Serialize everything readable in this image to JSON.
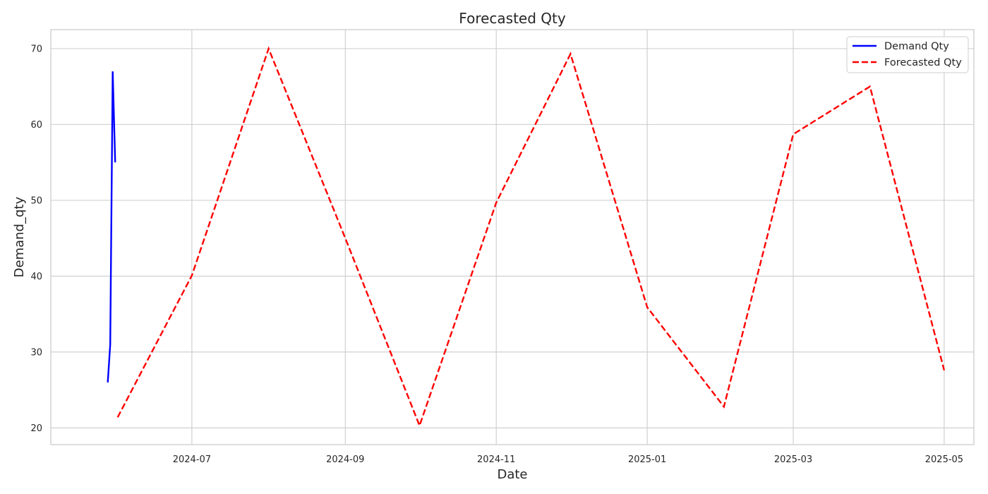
{
  "chart_data": {
    "type": "line",
    "title": "Forecasted Qty",
    "xlabel": "Date",
    "ylabel": "Demand_qty",
    "x_axis": {
      "kind": "date",
      "range": [
        "2024-05-05",
        "2025-05-13"
      ],
      "ticks": [
        "2024-07-01",
        "2024-09-01",
        "2024-11-01",
        "2025-01-01",
        "2025-03-01",
        "2025-05-01"
      ],
      "tick_labels": [
        "2024-07",
        "2024-09",
        "2024-11",
        "2025-01",
        "2025-03",
        "2025-05"
      ]
    },
    "y_axis": {
      "range": [
        17.8,
        72.5
      ],
      "ticks": [
        20,
        30,
        40,
        50,
        60,
        70
      ],
      "tick_labels": [
        "20",
        "30",
        "40",
        "50",
        "60",
        "70"
      ]
    },
    "grid": true,
    "legend_position": "top-right",
    "series": [
      {
        "name": "Demand Qty",
        "color": "#0000ff",
        "style": "solid",
        "x": [
          "2024-05-28",
          "2024-05-29",
          "2024-05-30",
          "2024-05-31"
        ],
        "y": [
          26,
          31,
          67,
          55
        ]
      },
      {
        "name": "Forecasted Qty",
        "color": "#ff0000",
        "style": "dashed",
        "x": [
          "2024-06-01",
          "2024-07-01",
          "2024-08-01",
          "2024-09-01",
          "2024-10-01",
          "2024-11-01",
          "2024-12-01",
          "2025-01-01",
          "2025-02-01",
          "2025-03-01",
          "2025-04-01",
          "2025-05-01"
        ],
        "y": [
          21.4,
          40.1,
          70.0,
          45.0,
          20.3,
          49.7,
          69.3,
          35.9,
          22.8,
          58.7,
          65.0,
          27.6
        ]
      }
    ]
  }
}
